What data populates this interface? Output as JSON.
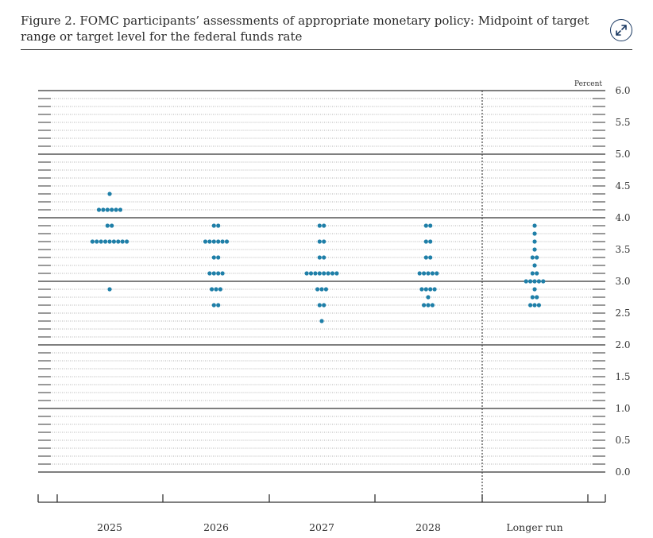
{
  "figure": {
    "title": "Figure 2. FOMC participants’ assessments of appropriate monetary policy: Midpoint of target range or target level for the federal funds rate"
  },
  "toolbar": {
    "expand_icon": "expand-arrows-icon"
  },
  "colors": {
    "dot": "#1f7fa8",
    "axis": "#333333"
  },
  "chart_data": {
    "type": "scatter",
    "chart_style": "dot plot",
    "title": "Figure 2. FOMC participants’ assessments of appropriate monetary policy: Midpoint of target range or target level for the federal funds rate",
    "ylabel": "Percent",
    "xlabel": "",
    "ylim": [
      0,
      6
    ],
    "y_ticks": [
      "0.0",
      "0.5",
      "1.0",
      "1.5",
      "2.0",
      "2.5",
      "3.0",
      "3.5",
      "4.0",
      "4.5",
      "5.0",
      "5.5",
      "6.0"
    ],
    "categories": [
      "2025",
      "2026",
      "2027",
      "2028",
      "Longer run"
    ],
    "grid": true,
    "separator_before": "Longer run",
    "series": [
      {
        "category": "2025",
        "points": [
          {
            "y": 4.375,
            "count": 1
          },
          {
            "y": 4.125,
            "count": 6
          },
          {
            "y": 3.875,
            "count": 2
          },
          {
            "y": 3.625,
            "count": 9
          },
          {
            "y": 2.875,
            "count": 1
          }
        ]
      },
      {
        "category": "2026",
        "points": [
          {
            "y": 3.875,
            "count": 2
          },
          {
            "y": 3.625,
            "count": 6
          },
          {
            "y": 3.375,
            "count": 2
          },
          {
            "y": 3.125,
            "count": 4
          },
          {
            "y": 2.875,
            "count": 3
          },
          {
            "y": 2.625,
            "count": 2
          }
        ]
      },
      {
        "category": "2027",
        "points": [
          {
            "y": 3.875,
            "count": 2
          },
          {
            "y": 3.625,
            "count": 2
          },
          {
            "y": 3.375,
            "count": 2
          },
          {
            "y": 3.125,
            "count": 8
          },
          {
            "y": 2.875,
            "count": 3
          },
          {
            "y": 2.625,
            "count": 2
          },
          {
            "y": 2.375,
            "count": 1
          }
        ]
      },
      {
        "category": "2028",
        "points": [
          {
            "y": 3.875,
            "count": 2
          },
          {
            "y": 3.625,
            "count": 2
          },
          {
            "y": 3.375,
            "count": 2
          },
          {
            "y": 3.125,
            "count": 5
          },
          {
            "y": 2.875,
            "count": 4
          },
          {
            "y": 2.75,
            "count": 1
          },
          {
            "y": 2.625,
            "count": 3
          }
        ]
      },
      {
        "category": "Longer run",
        "points": [
          {
            "y": 3.875,
            "count": 1
          },
          {
            "y": 3.75,
            "count": 1
          },
          {
            "y": 3.625,
            "count": 1
          },
          {
            "y": 3.5,
            "count": 1
          },
          {
            "y": 3.375,
            "count": 2
          },
          {
            "y": 3.25,
            "count": 1
          },
          {
            "y": 3.125,
            "count": 2
          },
          {
            "y": 3.0,
            "count": 5
          },
          {
            "y": 2.875,
            "count": 1
          },
          {
            "y": 2.75,
            "count": 2
          },
          {
            "y": 2.625,
            "count": 3
          }
        ]
      }
    ]
  }
}
